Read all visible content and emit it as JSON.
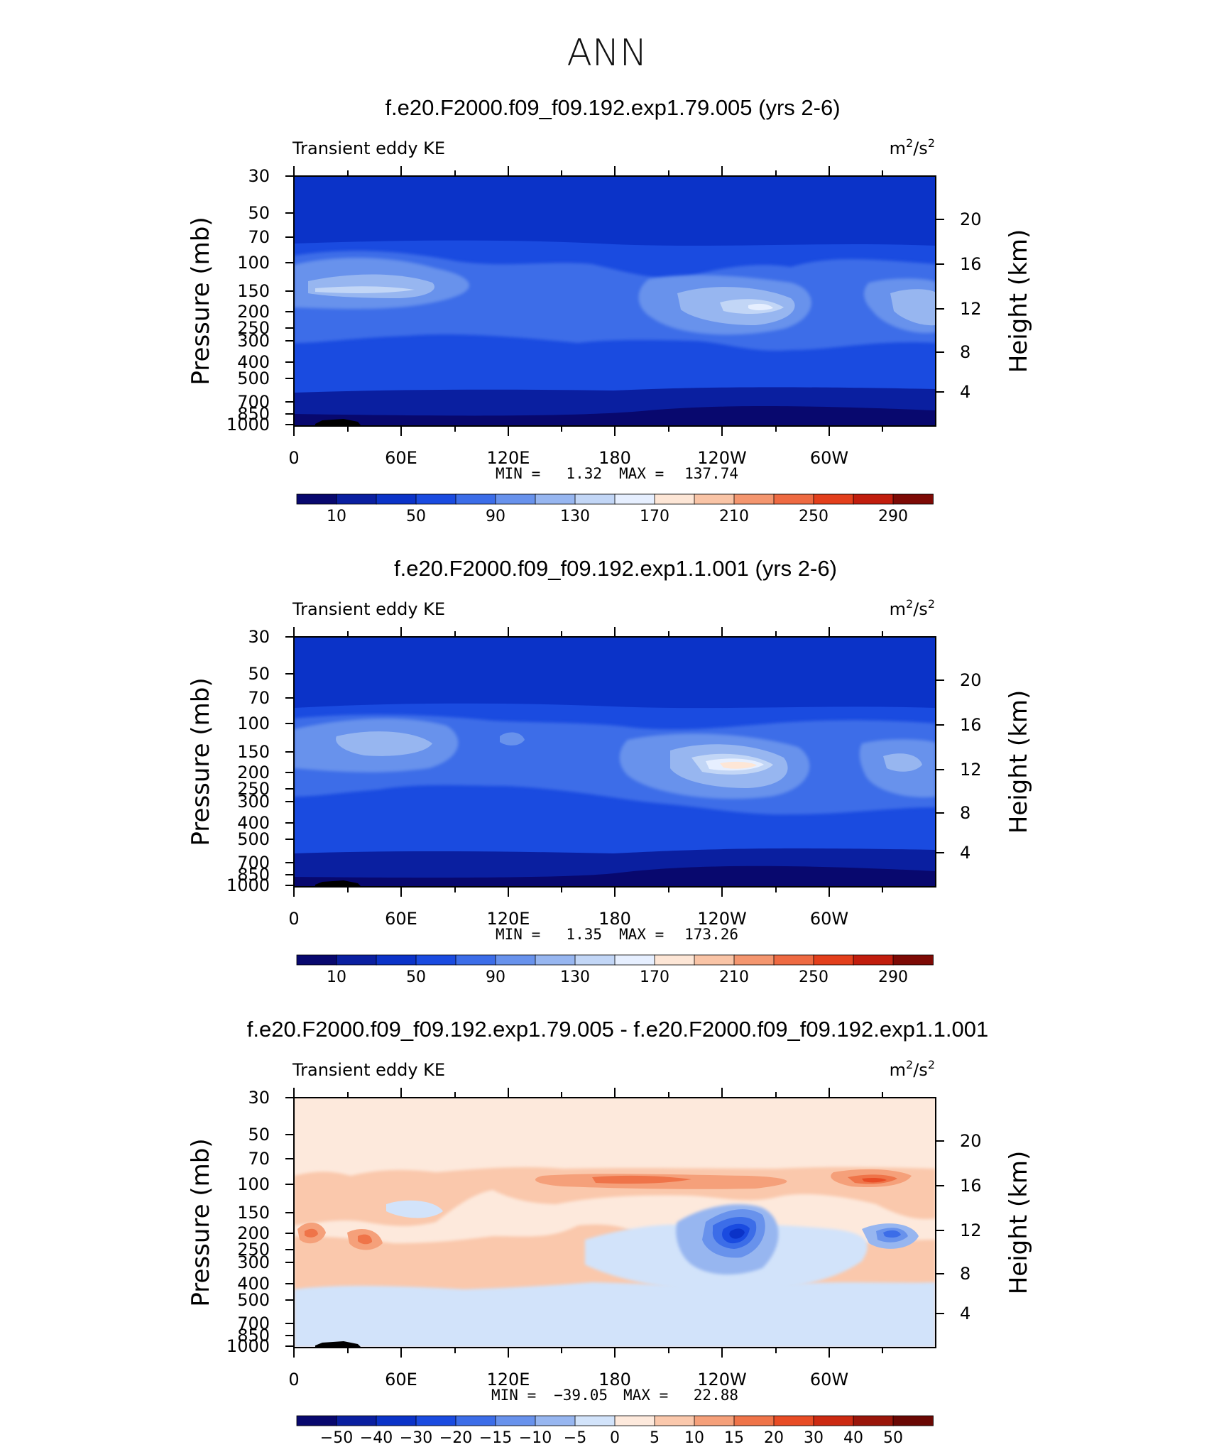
{
  "page_title": "ANN",
  "chart_data": [
    {
      "type": "heatmap",
      "title": "f.e20.F2000.f09_f09.192.exp1.79.005 (yrs 2-6)",
      "field_label": "Transient eddy KE",
      "units": "m²/s²",
      "units_base": "m",
      "units_mid": "/s",
      "units_sup": "2",
      "ylabel_left": "Pressure (mb)",
      "ylabel_right": "Height (km)",
      "pressure_ticks": [
        "30",
        "50",
        "70",
        "100",
        "150",
        "200",
        "250",
        "300",
        "400",
        "500",
        "700",
        "850",
        "1000"
      ],
      "height_ticks": [
        "20",
        "16",
        "12",
        "8",
        "4"
      ],
      "lon_ticks": [
        "0",
        "60E",
        "120E",
        "180",
        "120W",
        "60W"
      ],
      "min_label": "MIN =",
      "min_value": "1.32",
      "max_label": "MAX =",
      "max_value": "137.74",
      "colorbar_labels": [
        "10",
        "50",
        "90",
        "130",
        "170",
        "210",
        "250",
        "290"
      ],
      "jet_maxima": [
        {
          "lon": 60,
          "pressure": 150,
          "value": 130
        },
        {
          "lon": 245,
          "pressure": 200,
          "value": 137.74
        },
        {
          "lon": 330,
          "pressure": 200,
          "value": 120
        }
      ]
    },
    {
      "type": "heatmap",
      "title": "f.e20.F2000.f09_f09.192.exp1.1.001 (yrs 2-6)",
      "field_label": "Transient eddy KE",
      "units": "m²/s²",
      "units_base": "m",
      "units_mid": "/s",
      "units_sup": "2",
      "ylabel_left": "Pressure (mb)",
      "ylabel_right": "Height (km)",
      "pressure_ticks": [
        "30",
        "50",
        "70",
        "100",
        "150",
        "200",
        "250",
        "300",
        "400",
        "500",
        "700",
        "850",
        "1000"
      ],
      "height_ticks": [
        "20",
        "16",
        "12",
        "8",
        "4"
      ],
      "lon_ticks": [
        "0",
        "60E",
        "120E",
        "180",
        "120W",
        "60W"
      ],
      "min_label": "MIN =",
      "min_value": "1.35",
      "max_label": "MAX =",
      "max_value": "173.26",
      "colorbar_labels": [
        "10",
        "50",
        "90",
        "130",
        "170",
        "210",
        "250",
        "290"
      ],
      "jet_maxima": [
        {
          "lon": 60,
          "pressure": 150,
          "value": 130
        },
        {
          "lon": 250,
          "pressure": 200,
          "value": 173.26
        },
        {
          "lon": 335,
          "pressure": 200,
          "value": 140
        }
      ]
    },
    {
      "type": "heatmap",
      "title": "f.e20.F2000.f09_f09.192.exp1.79.005 - f.e20.F2000.f09_f09.192.exp1.1.001",
      "field_label": "Transient eddy KE",
      "units": "m²/s²",
      "units_base": "m",
      "units_mid": "/s",
      "units_sup": "2",
      "ylabel_left": "Pressure (mb)",
      "ylabel_right": "Height (km)",
      "pressure_ticks": [
        "30",
        "50",
        "70",
        "100",
        "150",
        "200",
        "250",
        "300",
        "400",
        "500",
        "700",
        "850",
        "1000"
      ],
      "height_ticks": [
        "20",
        "16",
        "12",
        "8",
        "4"
      ],
      "lon_ticks": [
        "0",
        "60E",
        "120E",
        "180",
        "120W",
        "60W"
      ],
      "min_label": "MIN =",
      "min_value": "−39.05",
      "max_label": "MAX =",
      "max_value": "22.88",
      "colorbar_labels": [
        "−50",
        "−40",
        "−30",
        "−20",
        "−15",
        "−10",
        "−5",
        "0",
        "5",
        "10",
        "15",
        "20",
        "30",
        "40",
        "50"
      ],
      "extrema": [
        {
          "lon": 255,
          "pressure": 200,
          "value": -39.05
        },
        {
          "lon": 310,
          "pressure": 100,
          "value": 22.88
        }
      ]
    }
  ],
  "colors": {
    "ke_palette": [
      "#08086e",
      "#0a1fa0",
      "#0b33c8",
      "#1a4be0",
      "#3c6de8",
      "#6892ec",
      "#97b6f0",
      "#c2d6f6",
      "#e6efff",
      "#fde6d6",
      "#f9c4a6",
      "#f4966f",
      "#ee6a42",
      "#e33f1c",
      "#c11d0d",
      "#7d0a05"
    ],
    "diff_palette": [
      "#08086e",
      "#0a1fa0",
      "#0b33c8",
      "#1a4be0",
      "#3c6de8",
      "#6892ec",
      "#97b6f0",
      "#d2e3fa",
      "#fde9dc",
      "#fac8ac",
      "#f5a07a",
      "#ef7449",
      "#e84c25",
      "#cc2a12",
      "#9a160a",
      "#6a0804"
    ]
  }
}
